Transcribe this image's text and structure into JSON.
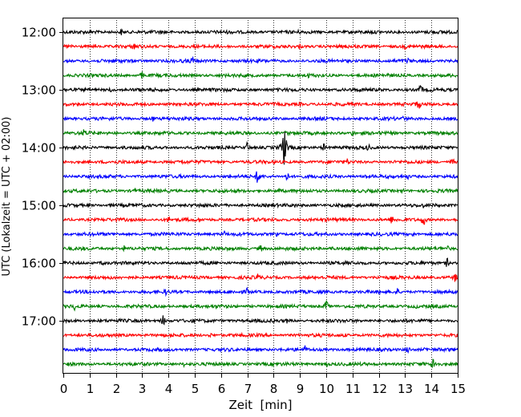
{
  "chart_data": {
    "type": "line",
    "title": "",
    "xlabel": "Zeit  [min]",
    "ylabel": "UTC (Lokalzeit = UTC + 02:00)",
    "xlim": [
      0,
      15
    ],
    "x_ticks": [
      "0",
      "1",
      "2",
      "3",
      "4",
      "5",
      "6",
      "7",
      "8",
      "9",
      "10",
      "11",
      "12",
      "13",
      "14",
      "15"
    ],
    "y_tick_labels": [
      "12:00",
      "13:00",
      "14:00",
      "15:00",
      "16:00",
      "17:00"
    ],
    "grid": "vertical dotted",
    "line_colors": [
      "#000000",
      "#ff0000",
      "#0000ff",
      "#008000"
    ],
    "series": [
      {
        "start": "12:00",
        "color": "#000000",
        "events": [
          {
            "x": 2.2,
            "amp": 5
          },
          {
            "x": 8.9,
            "amp": 4
          },
          {
            "x": 14.0,
            "amp": 5
          }
        ]
      },
      {
        "start": "12:15",
        "color": "#ff0000",
        "events": [
          {
            "x": 1.2,
            "amp": 4
          },
          {
            "x": 2.7,
            "amp": 7
          },
          {
            "x": 9.0,
            "amp": 4
          },
          {
            "x": 13.0,
            "amp": 4
          }
        ]
      },
      {
        "start": "12:30",
        "color": "#0000ff",
        "events": [
          {
            "x": 4.9,
            "amp": 7
          },
          {
            "x": 13.1,
            "amp": 5
          }
        ]
      },
      {
        "start": "12:45",
        "color": "#008000",
        "events": [
          {
            "x": 3.0,
            "amp": 6
          },
          {
            "x": 9.3,
            "amp": 5
          },
          {
            "x": 12.3,
            "amp": 4
          }
        ]
      },
      {
        "start": "13:00",
        "color": "#000000",
        "events": [
          {
            "x": 1.8,
            "amp": 4
          },
          {
            "x": 13.6,
            "amp": 8
          }
        ]
      },
      {
        "start": "13:15",
        "color": "#ff0000",
        "events": [
          {
            "x": 9.0,
            "amp": 4
          },
          {
            "x": 13.5,
            "amp": 9
          }
        ]
      },
      {
        "start": "13:30",
        "color": "#0000ff",
        "events": [
          {
            "x": 3.4,
            "amp": 5
          },
          {
            "x": 12.9,
            "amp": 4
          }
        ]
      },
      {
        "start": "13:45",
        "color": "#008000",
        "events": [
          {
            "x": 0.8,
            "amp": 7
          },
          {
            "x": 8.5,
            "amp": 5
          },
          {
            "x": 11.0,
            "amp": 5
          }
        ]
      },
      {
        "start": "14:00",
        "color": "#000000",
        "events": [
          {
            "x": 7.0,
            "amp": 8
          },
          {
            "x": 8.4,
            "amp": 27
          },
          {
            "x": 9.9,
            "amp": 6
          },
          {
            "x": 11.6,
            "amp": 6
          }
        ]
      },
      {
        "start": "14:15",
        "color": "#ff0000",
        "events": [
          {
            "x": 4.5,
            "amp": 5
          },
          {
            "x": 10.8,
            "amp": 5
          },
          {
            "x": 14.8,
            "amp": 6
          }
        ]
      },
      {
        "start": "14:30",
        "color": "#0000ff",
        "events": [
          {
            "x": 7.4,
            "amp": 12
          },
          {
            "x": 8.5,
            "amp": 7
          },
          {
            "x": 11.5,
            "amp": 5
          },
          {
            "x": 13.1,
            "amp": 4
          }
        ]
      },
      {
        "start": "14:45",
        "color": "#008000",
        "events": [
          {
            "x": 2.7,
            "amp": 4
          },
          {
            "x": 8.2,
            "amp": 4
          },
          {
            "x": 12.9,
            "amp": 4
          }
        ]
      },
      {
        "start": "15:00",
        "color": "#000000",
        "events": [
          {
            "x": 5.2,
            "amp": 4
          },
          {
            "x": 8.8,
            "amp": 4
          },
          {
            "x": 13.7,
            "amp": 4
          }
        ]
      },
      {
        "start": "15:15",
        "color": "#ff0000",
        "events": [
          {
            "x": 4.0,
            "amp": 6
          },
          {
            "x": 12.5,
            "amp": 7
          },
          {
            "x": 13.7,
            "amp": 10
          }
        ]
      },
      {
        "start": "15:30",
        "color": "#0000ff",
        "events": [
          {
            "x": 6.1,
            "amp": 6
          },
          {
            "x": 8.1,
            "amp": 4
          },
          {
            "x": 13.3,
            "amp": 4
          }
        ]
      },
      {
        "start": "15:45",
        "color": "#008000",
        "events": [
          {
            "x": 2.3,
            "amp": 5
          },
          {
            "x": 7.5,
            "amp": 6
          },
          {
            "x": 10.2,
            "amp": 4
          },
          {
            "x": 14.6,
            "amp": 5
          }
        ]
      },
      {
        "start": "16:00",
        "color": "#000000",
        "events": [
          {
            "x": 1.5,
            "amp": 5
          },
          {
            "x": 10.8,
            "amp": 6
          },
          {
            "x": 14.6,
            "amp": 7
          }
        ]
      },
      {
        "start": "16:15",
        "color": "#ff0000",
        "events": [
          {
            "x": 7.4,
            "amp": 6
          },
          {
            "x": 12.0,
            "amp": 5
          },
          {
            "x": 14.9,
            "amp": 7
          }
        ]
      },
      {
        "start": "16:30",
        "color": "#0000ff",
        "events": [
          {
            "x": 3.9,
            "amp": 5
          },
          {
            "x": 7.0,
            "amp": 6
          },
          {
            "x": 12.7,
            "amp": 6
          }
        ]
      },
      {
        "start": "16:45",
        "color": "#008000",
        "events": [
          {
            "x": 0.4,
            "amp": 7
          },
          {
            "x": 10.0,
            "amp": 9
          },
          {
            "x": 13.4,
            "amp": 4
          }
        ]
      },
      {
        "start": "17:00",
        "color": "#000000",
        "events": [
          {
            "x": 3.8,
            "amp": 8
          },
          {
            "x": 8.5,
            "amp": 4
          }
        ]
      },
      {
        "start": "17:15",
        "color": "#ff0000",
        "events": [
          {
            "x": 5.6,
            "amp": 4
          },
          {
            "x": 10.7,
            "amp": 4
          }
        ]
      },
      {
        "start": "17:30",
        "color": "#0000ff",
        "events": [
          {
            "x": 9.2,
            "amp": 6
          },
          {
            "x": 13.1,
            "amp": 7
          },
          {
            "x": 13.8,
            "amp": 5
          }
        ]
      },
      {
        "start": "17:45",
        "color": "#008000",
        "events": [
          {
            "x": 4.6,
            "amp": 4
          },
          {
            "x": 10.0,
            "amp": 6
          },
          {
            "x": 14.1,
            "amp": 12
          }
        ]
      }
    ]
  }
}
